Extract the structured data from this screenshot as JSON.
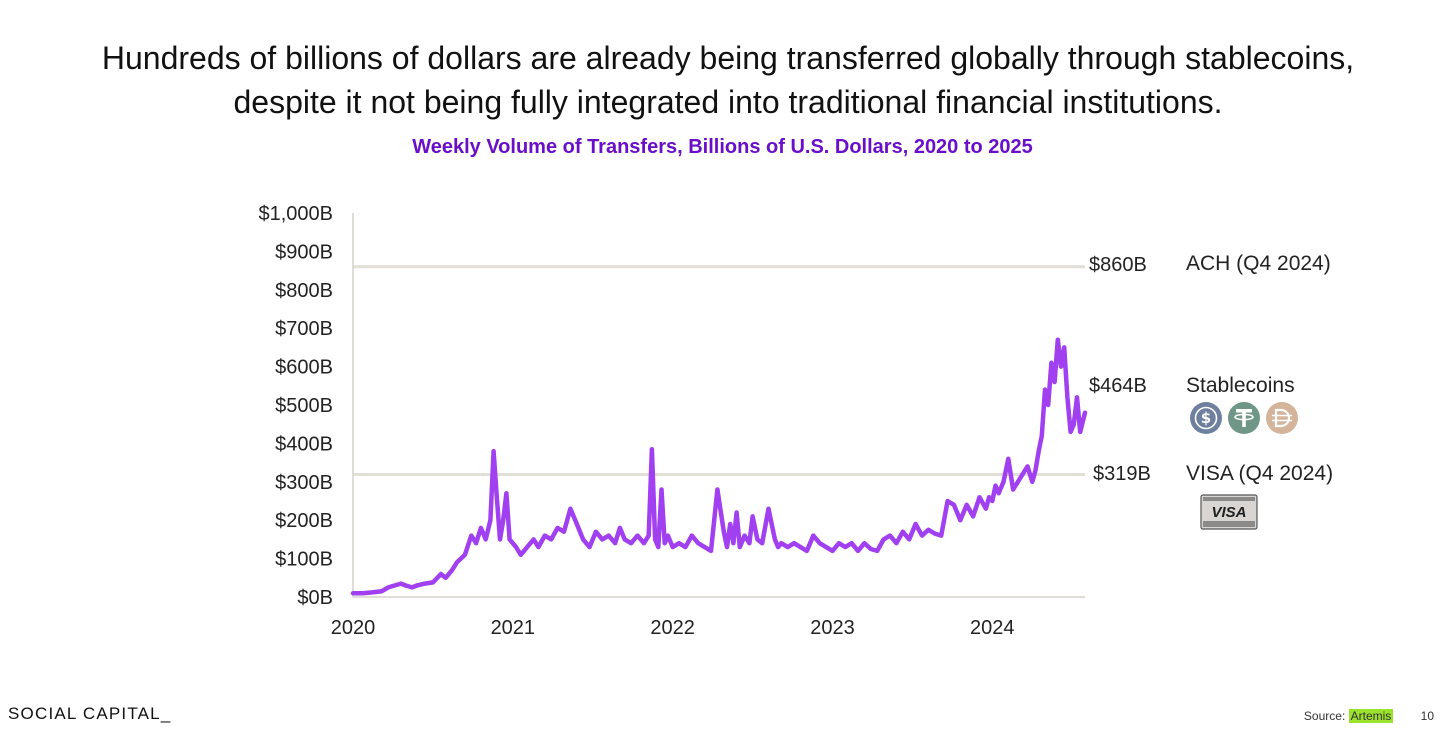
{
  "headline": "Hundreds of billions of dollars are already being transferred globally through stablecoins, despite it not being fully integrated into traditional financial institutions.",
  "subtitle": "Weekly Volume of Transfers, Billions of U.S. Dollars, 2020 to 2025",
  "brand": "SOCIAL CAPITAL_",
  "footer": {
    "source_label": "Source:",
    "source_name": "Artemis",
    "page_number": "10"
  },
  "colors": {
    "series": "#a040f0",
    "subtitle": "#6a0fc9",
    "reference_line": "#e2dfd9",
    "axis": "#d6d2cc",
    "usdc": "#6f7f9f",
    "usdt": "#6f9686",
    "dai": "#d4b49a",
    "source_highlight": "#9be22d"
  },
  "icons": [
    "usdc-coin-icon",
    "usdt-coin-icon",
    "dai-coin-icon",
    "visa-card-icon"
  ],
  "chart_data": {
    "type": "line",
    "title": "Weekly Volume of Transfers, Billions of U.S. Dollars, 2020 to 2025",
    "xlabel": "",
    "ylabel": "",
    "x_range": [
      2020.0,
      2024.58
    ],
    "ylim": [
      0,
      1000
    ],
    "y_ticks": [
      "$0B",
      "$100B",
      "$200B",
      "$300B",
      "$400B",
      "$500B",
      "$600B",
      "$700B",
      "$800B",
      "$900B",
      "$1,000B"
    ],
    "y_tick_values": [
      0,
      100,
      200,
      300,
      400,
      500,
      600,
      700,
      800,
      900,
      1000
    ],
    "x_ticks": [
      "2020",
      "2021",
      "2022",
      "2023",
      "2024"
    ],
    "x_tick_values": [
      2020,
      2021,
      2022,
      2023,
      2024
    ],
    "grid": false,
    "series": [
      {
        "name": "Stablecoins",
        "x": [
          2020.0,
          2020.06,
          2020.12,
          2020.18,
          2020.22,
          2020.26,
          2020.3,
          2020.33,
          2020.37,
          2020.4,
          2020.45,
          2020.5,
          2020.55,
          2020.58,
          2020.62,
          2020.65,
          2020.7,
          2020.74,
          2020.77,
          2020.8,
          2020.83,
          2020.86,
          2020.88,
          2020.9,
          2020.92,
          2020.94,
          2020.96,
          2020.98,
          2021.0,
          2021.02,
          2021.05,
          2021.07,
          2021.09,
          2021.11,
          2021.13,
          2021.16,
          2021.2,
          2021.24,
          2021.28,
          2021.32,
          2021.36,
          2021.4,
          2021.44,
          2021.48,
          2021.52,
          2021.56,
          2021.6,
          2021.64,
          2021.67,
          2021.7,
          2021.74,
          2021.78,
          2021.82,
          2021.85,
          2021.87,
          2021.89,
          2021.91,
          2021.93,
          2021.95,
          2021.97,
          2022.0,
          2022.04,
          2022.08,
          2022.12,
          2022.16,
          2022.2,
          2022.24,
          2022.28,
          2022.32,
          2022.34,
          2022.36,
          2022.38,
          2022.4,
          2022.42,
          2022.45,
          2022.48,
          2022.5,
          2022.53,
          2022.56,
          2022.6,
          2022.64,
          2022.66,
          2022.68,
          2022.72,
          2022.76,
          2022.8,
          2022.84,
          2022.88,
          2022.92,
          2022.96,
          2023.0,
          2023.04,
          2023.08,
          2023.12,
          2023.16,
          2023.2,
          2023.24,
          2023.28,
          2023.32,
          2023.36,
          2023.4,
          2023.44,
          2023.48,
          2023.52,
          2023.56,
          2023.6,
          2023.64,
          2023.68,
          2023.72,
          2023.76,
          2023.8,
          2023.84,
          2023.88,
          2023.92,
          2023.96,
          2023.98,
          2024.0,
          2024.02,
          2024.04,
          2024.07,
          2024.1,
          2024.13,
          2024.16,
          2024.19,
          2024.22,
          2024.25,
          2024.27,
          2024.29,
          2024.31,
          2024.33,
          2024.35,
          2024.37,
          2024.39,
          2024.41,
          2024.43,
          2024.45,
          2024.47,
          2024.49,
          2024.51,
          2024.53,
          2024.55,
          2024.58
        ],
        "values": [
          10,
          10,
          12,
          15,
          25,
          30,
          35,
          30,
          25,
          30,
          35,
          38,
          60,
          50,
          70,
          90,
          110,
          160,
          140,
          180,
          150,
          200,
          380,
          260,
          150,
          200,
          270,
          150,
          140,
          130,
          110,
          120,
          130,
          140,
          150,
          130,
          160,
          150,
          180,
          170,
          230,
          190,
          150,
          130,
          170,
          150,
          160,
          140,
          180,
          150,
          140,
          160,
          140,
          160,
          385,
          150,
          130,
          280,
          140,
          160,
          130,
          140,
          130,
          160,
          140,
          130,
          120,
          280,
          170,
          130,
          190,
          140,
          220,
          130,
          160,
          140,
          210,
          150,
          140,
          230,
          150,
          130,
          140,
          130,
          140,
          130,
          120,
          160,
          140,
          130,
          120,
          140,
          130,
          140,
          120,
          140,
          125,
          120,
          150,
          160,
          140,
          170,
          150,
          190,
          160,
          175,
          165,
          160,
          250,
          240,
          200,
          240,
          210,
          260,
          230,
          260,
          250,
          290,
          270,
          300,
          360,
          280,
          300,
          320,
          340,
          300,
          330,
          380,
          420,
          540,
          500,
          610,
          560,
          670,
          600,
          650,
          520,
          430,
          450,
          520,
          430,
          480
        ]
      }
    ],
    "reference_lines": [
      {
        "name": "ACH (Q4 2024)",
        "value": 860,
        "label": "$860B"
      },
      {
        "name": "VISA (Q4 2024)",
        "value": 319,
        "label": "$319B"
      }
    ],
    "annotations": [
      {
        "series": "Stablecoins",
        "value": 464,
        "label": "$464B",
        "name": "Stablecoins"
      }
    ]
  }
}
